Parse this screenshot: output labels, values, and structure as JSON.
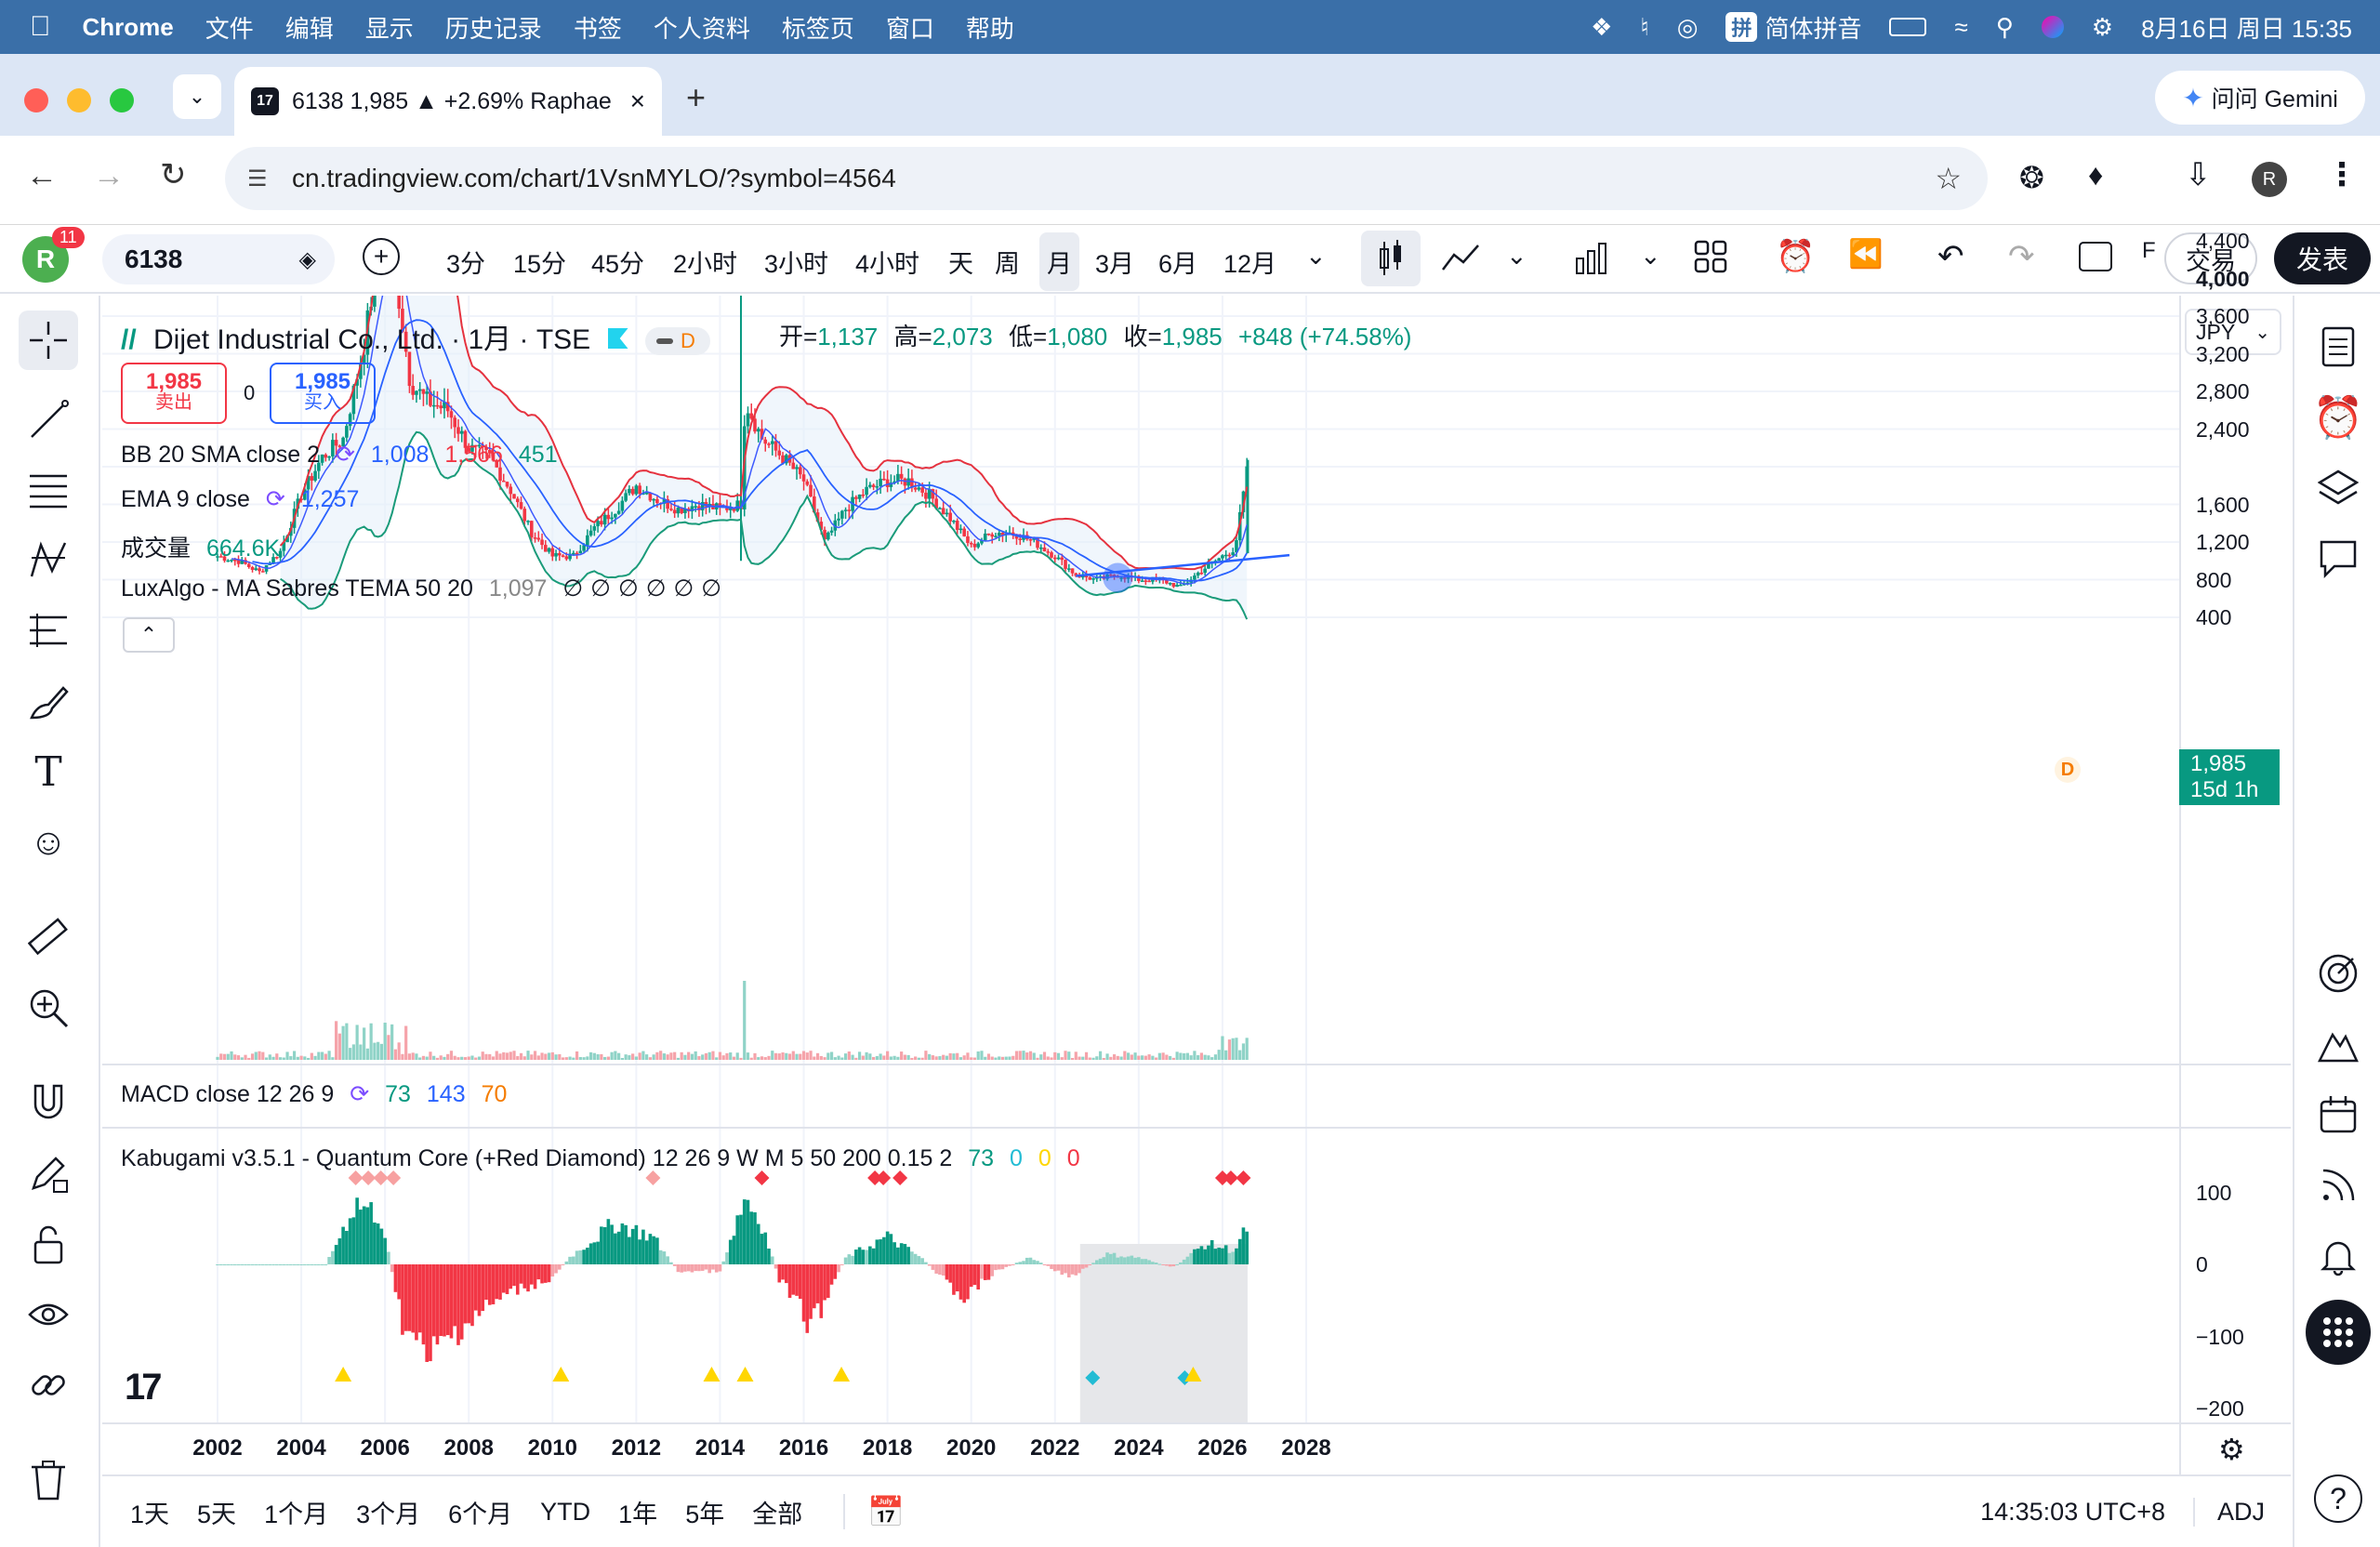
{
  "menubar": {
    "app": "Chrome",
    "items": [
      "文件",
      "编辑",
      "显示",
      "历史记录",
      "书签",
      "个人资料",
      "标签页",
      "窗口",
      "帮助"
    ],
    "input_method": "简体拼音",
    "datetime": "8月16日 周日 15:35"
  },
  "browser": {
    "tab_title": "6138 1,985 ▲ +2.69% Raphae",
    "url": "cn.tradingview.com/chart/1VsnMYLO/?symbol=4564",
    "gemini_label": "问问 Gemini",
    "profile_initial": "R"
  },
  "toolbar": {
    "avatar_initial": "R",
    "notification_count": "11",
    "symbol": "6138",
    "intervals": [
      "3分",
      "15分",
      "45分",
      "2小时",
      "3小时",
      "4小时",
      "天",
      "周",
      "月",
      "3月",
      "6月",
      "12月"
    ],
    "active_interval": "月",
    "partial_label": "F",
    "trade_label": "交易",
    "publish_label": "发表"
  },
  "legend": {
    "title": "Dijet Industrial Co., Ltd. · 1月 · TSE",
    "badge": "D",
    "ohlc": {
      "open_label": "开=",
      "open": "1,137",
      "high_label": "高=",
      "high": "2,073",
      "low_label": "低=",
      "low": "1,080",
      "close_label": "收=",
      "close": "1,985",
      "change": "+848 (+74.58%)"
    },
    "sell_price": "1,985",
    "sell_label": "卖出",
    "spread": "0",
    "buy_price": "1,985",
    "buy_label": "买入",
    "indicators": [
      {
        "name": "BB 20 SMA close 2",
        "values": [
          "1,008",
          "1,566",
          "451"
        ]
      },
      {
        "name": "EMA 9 close",
        "values": [
          "1,257"
        ]
      },
      {
        "name": "成交量",
        "values": [
          "664.6K"
        ]
      },
      {
        "name": "LuxAlgo - MA Sabres TEMA 50 20",
        "values": [
          "1,097",
          "∅",
          "∅",
          "∅",
          "∅",
          "∅",
          "∅"
        ]
      }
    ]
  },
  "price_axis": {
    "currency": "JPY",
    "labels": [
      "4,400",
      "4,000",
      "3,600",
      "3,200",
      "2,800",
      "2,400",
      "1,600",
      "1,200",
      "800",
      "400"
    ],
    "last_price": "1,985",
    "countdown": "15d 1h",
    "dividend_marker": "D"
  },
  "macd": {
    "name": "MACD close 12 26 9",
    "values": [
      "73",
      "143",
      "70"
    ]
  },
  "kabugami": {
    "name": "Kabugami v3.5.1 - Quantum Core (+Red Diamond) 12 26 9 W M 5 50 200 0.15 2",
    "values": [
      "73",
      "0",
      "0",
      "0"
    ],
    "axis_labels": [
      "100",
      "0",
      "−100",
      "−200"
    ]
  },
  "time_axis": [
    "2002",
    "2004",
    "2006",
    "2008",
    "2010",
    "2012",
    "2014",
    "2016",
    "2018",
    "2020",
    "2022",
    "2024",
    "2026",
    "2028"
  ],
  "bottombar": {
    "ranges": [
      "1天",
      "5天",
      "1个月",
      "3个月",
      "6个月",
      "YTD",
      "1年",
      "5年",
      "全部"
    ],
    "clock": "14:35:03 UTC+8",
    "adj": "ADJ"
  },
  "colors": {
    "up": "#089981",
    "down": "#f23645",
    "bb_upper": "#e5323f",
    "bb_lower": "#1a9b7a",
    "ema": "#2962ff",
    "accent": "#2962ff"
  },
  "chart_data": {
    "type": "candlestick",
    "title": "Dijet Industrial Co., Ltd. · 1月 · TSE",
    "x_range": [
      2002,
      2028
    ],
    "y_range": [
      400,
      4400
    ],
    "last_close": 1985,
    "price_path": [
      [
        2002.0,
        1050
      ],
      [
        2002.5,
        1000
      ],
      [
        2003.0,
        880
      ],
      [
        2003.5,
        1100
      ],
      [
        2004.0,
        1700
      ],
      [
        2004.5,
        2100
      ],
      [
        2005.0,
        2300
      ],
      [
        2005.5,
        3300
      ],
      [
        2005.9,
        4450
      ],
      [
        2006.3,
        3900
      ],
      [
        2006.6,
        2900
      ],
      [
        2007.0,
        2700
      ],
      [
        2007.5,
        2600
      ],
      [
        2008.0,
        2200
      ],
      [
        2008.5,
        2100
      ],
      [
        2009.0,
        1750
      ],
      [
        2009.5,
        1300
      ],
      [
        2010.0,
        1050
      ],
      [
        2010.5,
        1050
      ],
      [
        2011.0,
        1350
      ],
      [
        2011.5,
        1550
      ],
      [
        2012.0,
        1800
      ],
      [
        2012.5,
        1650
      ],
      [
        2013.0,
        1550
      ],
      [
        2013.5,
        1600
      ],
      [
        2014.0,
        1550
      ],
      [
        2014.5,
        1600
      ],
      [
        2014.6,
        2700
      ],
      [
        2015.0,
        2300
      ],
      [
        2015.5,
        2100
      ],
      [
        2016.0,
        1850
      ],
      [
        2016.5,
        1200
      ],
      [
        2017.0,
        1550
      ],
      [
        2017.5,
        1750
      ],
      [
        2018.0,
        1850
      ],
      [
        2018.5,
        1850
      ],
      [
        2019.0,
        1700
      ],
      [
        2019.5,
        1450
      ],
      [
        2020.0,
        1150
      ],
      [
        2020.5,
        1300
      ],
      [
        2021.0,
        1300
      ],
      [
        2021.5,
        1200
      ],
      [
        2022.0,
        1050
      ],
      [
        2022.5,
        850
      ],
      [
        2023.0,
        800
      ],
      [
        2023.5,
        850
      ],
      [
        2024.0,
        800
      ],
      [
        2024.5,
        800
      ],
      [
        2025.0,
        720
      ],
      [
        2025.5,
        900
      ],
      [
        2026.0,
        1050
      ],
      [
        2026.3,
        1137
      ],
      [
        2026.6,
        1985
      ]
    ]
  }
}
